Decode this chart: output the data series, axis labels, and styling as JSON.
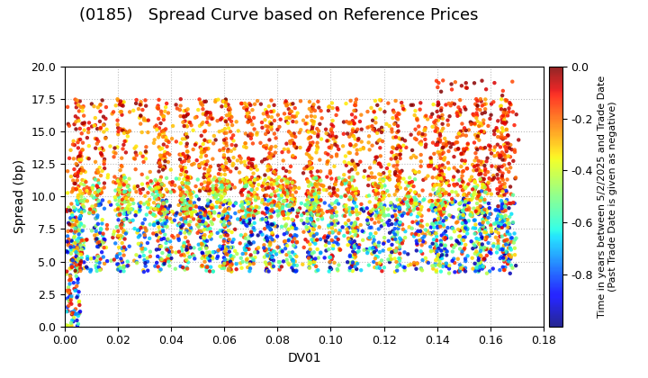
{
  "title": "(0185)   Spread Curve based on Reference Prices",
  "xlabel": "DV01",
  "ylabel": "Spread (bp)",
  "xlim": [
    0.0,
    0.18
  ],
  "ylim": [
    0.0,
    20.0
  ],
  "xticks": [
    0.0,
    0.02,
    0.04,
    0.06,
    0.08,
    0.1,
    0.12,
    0.14,
    0.16,
    0.18
  ],
  "yticks": [
    0.0,
    2.5,
    5.0,
    7.5,
    10.0,
    12.5,
    15.0,
    17.5,
    20.0
  ],
  "colorbar_label": "Time in years between 5/2/2025 and Trade Date\n(Past Trade Date is given as negative)",
  "cbar_ticks": [
    0.0,
    -0.2,
    -0.4,
    -0.6,
    -0.8
  ],
  "cbar_vmin": -1.0,
  "cbar_vmax": 0.0,
  "n_points": 3000,
  "seed": 42,
  "background_color": "#ffffff",
  "grid_color": "#bbbbbb",
  "title_fontsize": 13,
  "axis_label_fontsize": 10,
  "tick_fontsize": 9,
  "colorbar_label_fontsize": 8,
  "marker_size": 10
}
